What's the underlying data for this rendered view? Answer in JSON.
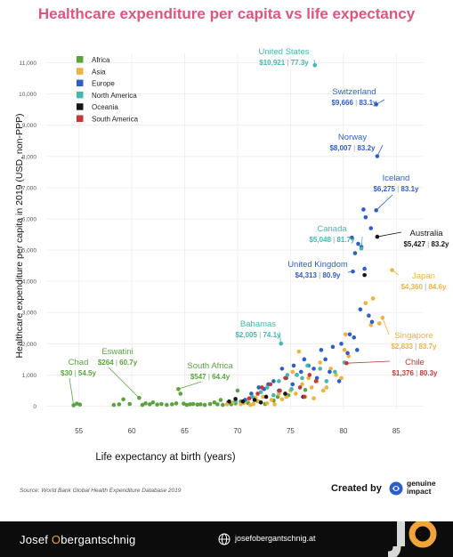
{
  "title": "Healthcare expenditure per capita vs life expectancy",
  "source": "Source: World Bank Global Health Expenditure Database 2019",
  "credit": {
    "created_by": "Created by",
    "brand": "genuine\nimpact"
  },
  "footer": {
    "author_first": "Josef ",
    "author_hl": "O",
    "author_rest": "bergantschnig",
    "website": "josefobergantschnig.at",
    "logo": "jo"
  },
  "colors": {
    "title": "#e0557f",
    "Africa": "#5aa43f",
    "Asia": "#f0b23e",
    "Europe": "#2f5ec8",
    "North America": "#45b7ad",
    "Oceania": "#161616",
    "South America": "#c23a36"
  },
  "chart_data": {
    "type": "scatter",
    "xlabel": "Life expectancy at birth (years)",
    "ylabel": "Healthcare expenditure per capita in 2019 (USD, non-PPP)",
    "xlim": [
      52,
      87.5
    ],
    "ylim": [
      -100,
      11300
    ],
    "xticks": [
      55,
      60,
      65,
      70,
      75,
      80,
      85
    ],
    "yticks": [
      0,
      1000,
      2000,
      3000,
      4000,
      5000,
      6000,
      7000,
      8000,
      9000,
      10000,
      11000
    ],
    "ytick_labels": [
      "0",
      "1,000",
      "2,000",
      "3,000",
      "4,000",
      "5,000",
      "6,000",
      "7,000",
      "8,000",
      "9,000",
      "10,000",
      "11,000"
    ],
    "grid": true,
    "legend": {
      "position": "top-left",
      "entries": [
        "Africa",
        "Asia",
        "Europe",
        "North America",
        "Oceania",
        "South America"
      ]
    },
    "annotations": [
      {
        "name": "United States",
        "spend": "$10,921",
        "life": "77.3y",
        "region": "North America",
        "x": 77.3,
        "y": 10921
      },
      {
        "name": "Switzerland",
        "spend": "$9,666",
        "life": "83.1y",
        "region": "Europe",
        "x": 83.1,
        "y": 9666
      },
      {
        "name": "Norway",
        "spend": "$8,007",
        "life": "83.2y",
        "region": "Europe",
        "x": 83.2,
        "y": 8007
      },
      {
        "name": "Iceland",
        "spend": "$6,275",
        "life": "83.1y",
        "region": "Europe",
        "x": 83.1,
        "y": 6275
      },
      {
        "name": "Australia",
        "spend": "$5,427",
        "life": "83.2y",
        "region": "Oceania",
        "x": 83.2,
        "y": 5427
      },
      {
        "name": "Canada",
        "spend": "$5,048",
        "life": "81.7y",
        "region": "North America",
        "x": 81.7,
        "y": 5048
      },
      {
        "name": "United Kingdom",
        "spend": "$4,313",
        "life": "80.9y",
        "region": "Europe",
        "x": 80.9,
        "y": 4313
      },
      {
        "name": "Japan",
        "spend": "$4,360",
        "life": "84.6y",
        "region": "Asia",
        "x": 84.6,
        "y": 4360
      },
      {
        "name": "Singapore",
        "spend": "$2,833",
        "life": "83.7y",
        "region": "Asia",
        "x": 83.7,
        "y": 2833
      },
      {
        "name": "Bahamas",
        "spend": "$2,005",
        "life": "74.1y",
        "region": "North America",
        "x": 74.1,
        "y": 2005
      },
      {
        "name": "Chile",
        "spend": "$1,376",
        "life": "80.3y",
        "region": "South America",
        "x": 80.3,
        "y": 1376
      },
      {
        "name": "Chad",
        "spend": "$30",
        "life": "54.5y",
        "region": "Africa",
        "x": 54.5,
        "y": 30
      },
      {
        "name": "Eswatini",
        "spend": "$264",
        "life": "60.7y",
        "region": "Africa",
        "x": 60.7,
        "y": 264
      },
      {
        "name": "South Africa",
        "spend": "$547",
        "life": "64.4y",
        "region": "Africa",
        "x": 64.4,
        "y": 547
      }
    ],
    "series": [
      {
        "name": "Africa",
        "points": [
          [
            54.5,
            30
          ],
          [
            54.8,
            80
          ],
          [
            55.1,
            50
          ],
          [
            58.3,
            40
          ],
          [
            58.8,
            60
          ],
          [
            59.2,
            220
          ],
          [
            59.8,
            70
          ],
          [
            60.7,
            264
          ],
          [
            61.0,
            40
          ],
          [
            61.3,
            90
          ],
          [
            61.7,
            60
          ],
          [
            62.0,
            120
          ],
          [
            62.4,
            50
          ],
          [
            62.8,
            70
          ],
          [
            63.3,
            40
          ],
          [
            63.8,
            60
          ],
          [
            64.2,
            90
          ],
          [
            64.4,
            547
          ],
          [
            64.6,
            400
          ],
          [
            64.9,
            80
          ],
          [
            65.2,
            40
          ],
          [
            65.5,
            60
          ],
          [
            65.8,
            70
          ],
          [
            66.2,
            50
          ],
          [
            66.5,
            60
          ],
          [
            66.9,
            40
          ],
          [
            67.4,
            70
          ],
          [
            67.8,
            120
          ],
          [
            68.1,
            60
          ],
          [
            68.4,
            200
          ],
          [
            68.6,
            40
          ],
          [
            69.1,
            120
          ],
          [
            69.4,
            60
          ],
          [
            69.8,
            90
          ],
          [
            70.0,
            500
          ],
          [
            70.3,
            150
          ],
          [
            71.0,
            100
          ],
          [
            71.9,
            160
          ],
          [
            72.6,
            70
          ],
          [
            73.4,
            180
          ],
          [
            73.8,
            300
          ],
          [
            74.8,
            350
          ],
          [
            76.4,
            520
          ]
        ]
      },
      {
        "name": "Asia",
        "points": [
          [
            69.0,
            60
          ],
          [
            69.6,
            120
          ],
          [
            70.3,
            60
          ],
          [
            70.6,
            100
          ],
          [
            70.9,
            200
          ],
          [
            71.2,
            40
          ],
          [
            71.5,
            70
          ],
          [
            71.7,
            270
          ],
          [
            72.0,
            150
          ],
          [
            72.4,
            300
          ],
          [
            72.8,
            90
          ],
          [
            73.2,
            200
          ],
          [
            73.5,
            60
          ],
          [
            73.9,
            400
          ],
          [
            74.2,
            220
          ],
          [
            74.6,
            300
          ],
          [
            75.0,
            500
          ],
          [
            75.2,
            1100
          ],
          [
            75.5,
            400
          ],
          [
            75.8,
            1750
          ],
          [
            76.1,
            700
          ],
          [
            76.4,
            300
          ],
          [
            76.7,
            900
          ],
          [
            77.0,
            600
          ],
          [
            77.2,
            250
          ],
          [
            77.5,
            800
          ],
          [
            77.8,
            1400
          ],
          [
            78.1,
            500
          ],
          [
            78.4,
            600
          ],
          [
            78.8,
            1200
          ],
          [
            79.3,
            1000
          ],
          [
            79.8,
            900
          ],
          [
            80.1,
            1800
          ],
          [
            80.2,
            2300
          ],
          [
            80.5,
            1600
          ],
          [
            82.1,
            3300
          ],
          [
            82.6,
            2600
          ],
          [
            82.8,
            3450
          ],
          [
            83.4,
            2650
          ],
          [
            83.7,
            2833
          ],
          [
            84.6,
            4360
          ]
        ]
      },
      {
        "name": "Europe",
        "points": [
          [
            70.7,
            200
          ],
          [
            71.3,
            400
          ],
          [
            72.0,
            600
          ],
          [
            72.5,
            550
          ],
          [
            72.9,
            700
          ],
          [
            73.4,
            800
          ],
          [
            73.9,
            500
          ],
          [
            74.2,
            1200
          ],
          [
            74.6,
            900
          ],
          [
            75.2,
            700
          ],
          [
            75.3,
            1300
          ],
          [
            75.6,
            1000
          ],
          [
            76.0,
            1100
          ],
          [
            76.3,
            1500
          ],
          [
            76.7,
            1300
          ],
          [
            77.2,
            1200
          ],
          [
            77.5,
            900
          ],
          [
            77.9,
            1800
          ],
          [
            78.3,
            1500
          ],
          [
            78.7,
            1100
          ],
          [
            79.0,
            1900
          ],
          [
            79.6,
            800
          ],
          [
            79.8,
            2000
          ],
          [
            80.4,
            1700
          ],
          [
            80.6,
            2300
          ],
          [
            80.8,
            5400
          ],
          [
            80.9,
            4313
          ],
          [
            81.0,
            2200
          ],
          [
            81.1,
            4900
          ],
          [
            81.3,
            1800
          ],
          [
            81.4,
            5200
          ],
          [
            81.6,
            3100
          ],
          [
            81.7,
            5100
          ],
          [
            81.9,
            6300
          ],
          [
            82.1,
            6050
          ],
          [
            82.4,
            2900
          ],
          [
            82.6,
            5700
          ],
          [
            82.7,
            2700
          ],
          [
            83.1,
            9666
          ],
          [
            83.1,
            6275
          ],
          [
            83.2,
            8007
          ],
          [
            82.0,
            4400
          ]
        ]
      },
      {
        "name": "North America",
        "points": [
          [
            69.8,
            150
          ],
          [
            71.4,
            300
          ],
          [
            72.2,
            450
          ],
          [
            72.8,
            600
          ],
          [
            73.4,
            350
          ],
          [
            73.9,
            800
          ],
          [
            74.1,
            2005
          ],
          [
            74.7,
            1000
          ],
          [
            75.1,
            550
          ],
          [
            75.6,
            1000
          ],
          [
            76.1,
            900
          ],
          [
            76.6,
            1300
          ],
          [
            77.3,
            10921
          ],
          [
            77.8,
            1200
          ],
          [
            78.4,
            800
          ],
          [
            79.2,
            1100
          ],
          [
            80.1,
            1400
          ],
          [
            81.7,
            5048
          ]
        ]
      },
      {
        "name": "Oceania",
        "points": [
          [
            69.2,
            150
          ],
          [
            69.8,
            230
          ],
          [
            70.5,
            150
          ],
          [
            71.6,
            200
          ],
          [
            72.2,
            120
          ],
          [
            72.7,
            300
          ],
          [
            74.5,
            400
          ],
          [
            76.2,
            300
          ],
          [
            82.0,
            4200
          ],
          [
            83.2,
            5427
          ]
        ]
      },
      {
        "name": "South America",
        "points": [
          [
            71.1,
            250
          ],
          [
            71.9,
            400
          ],
          [
            72.3,
            600
          ],
          [
            73.1,
            700
          ],
          [
            74.0,
            500
          ],
          [
            74.5,
            900
          ],
          [
            75.9,
            600
          ],
          [
            76.3,
            300
          ],
          [
            76.8,
            1000
          ],
          [
            77.4,
            800
          ],
          [
            80.3,
            1376
          ]
        ]
      }
    ]
  }
}
